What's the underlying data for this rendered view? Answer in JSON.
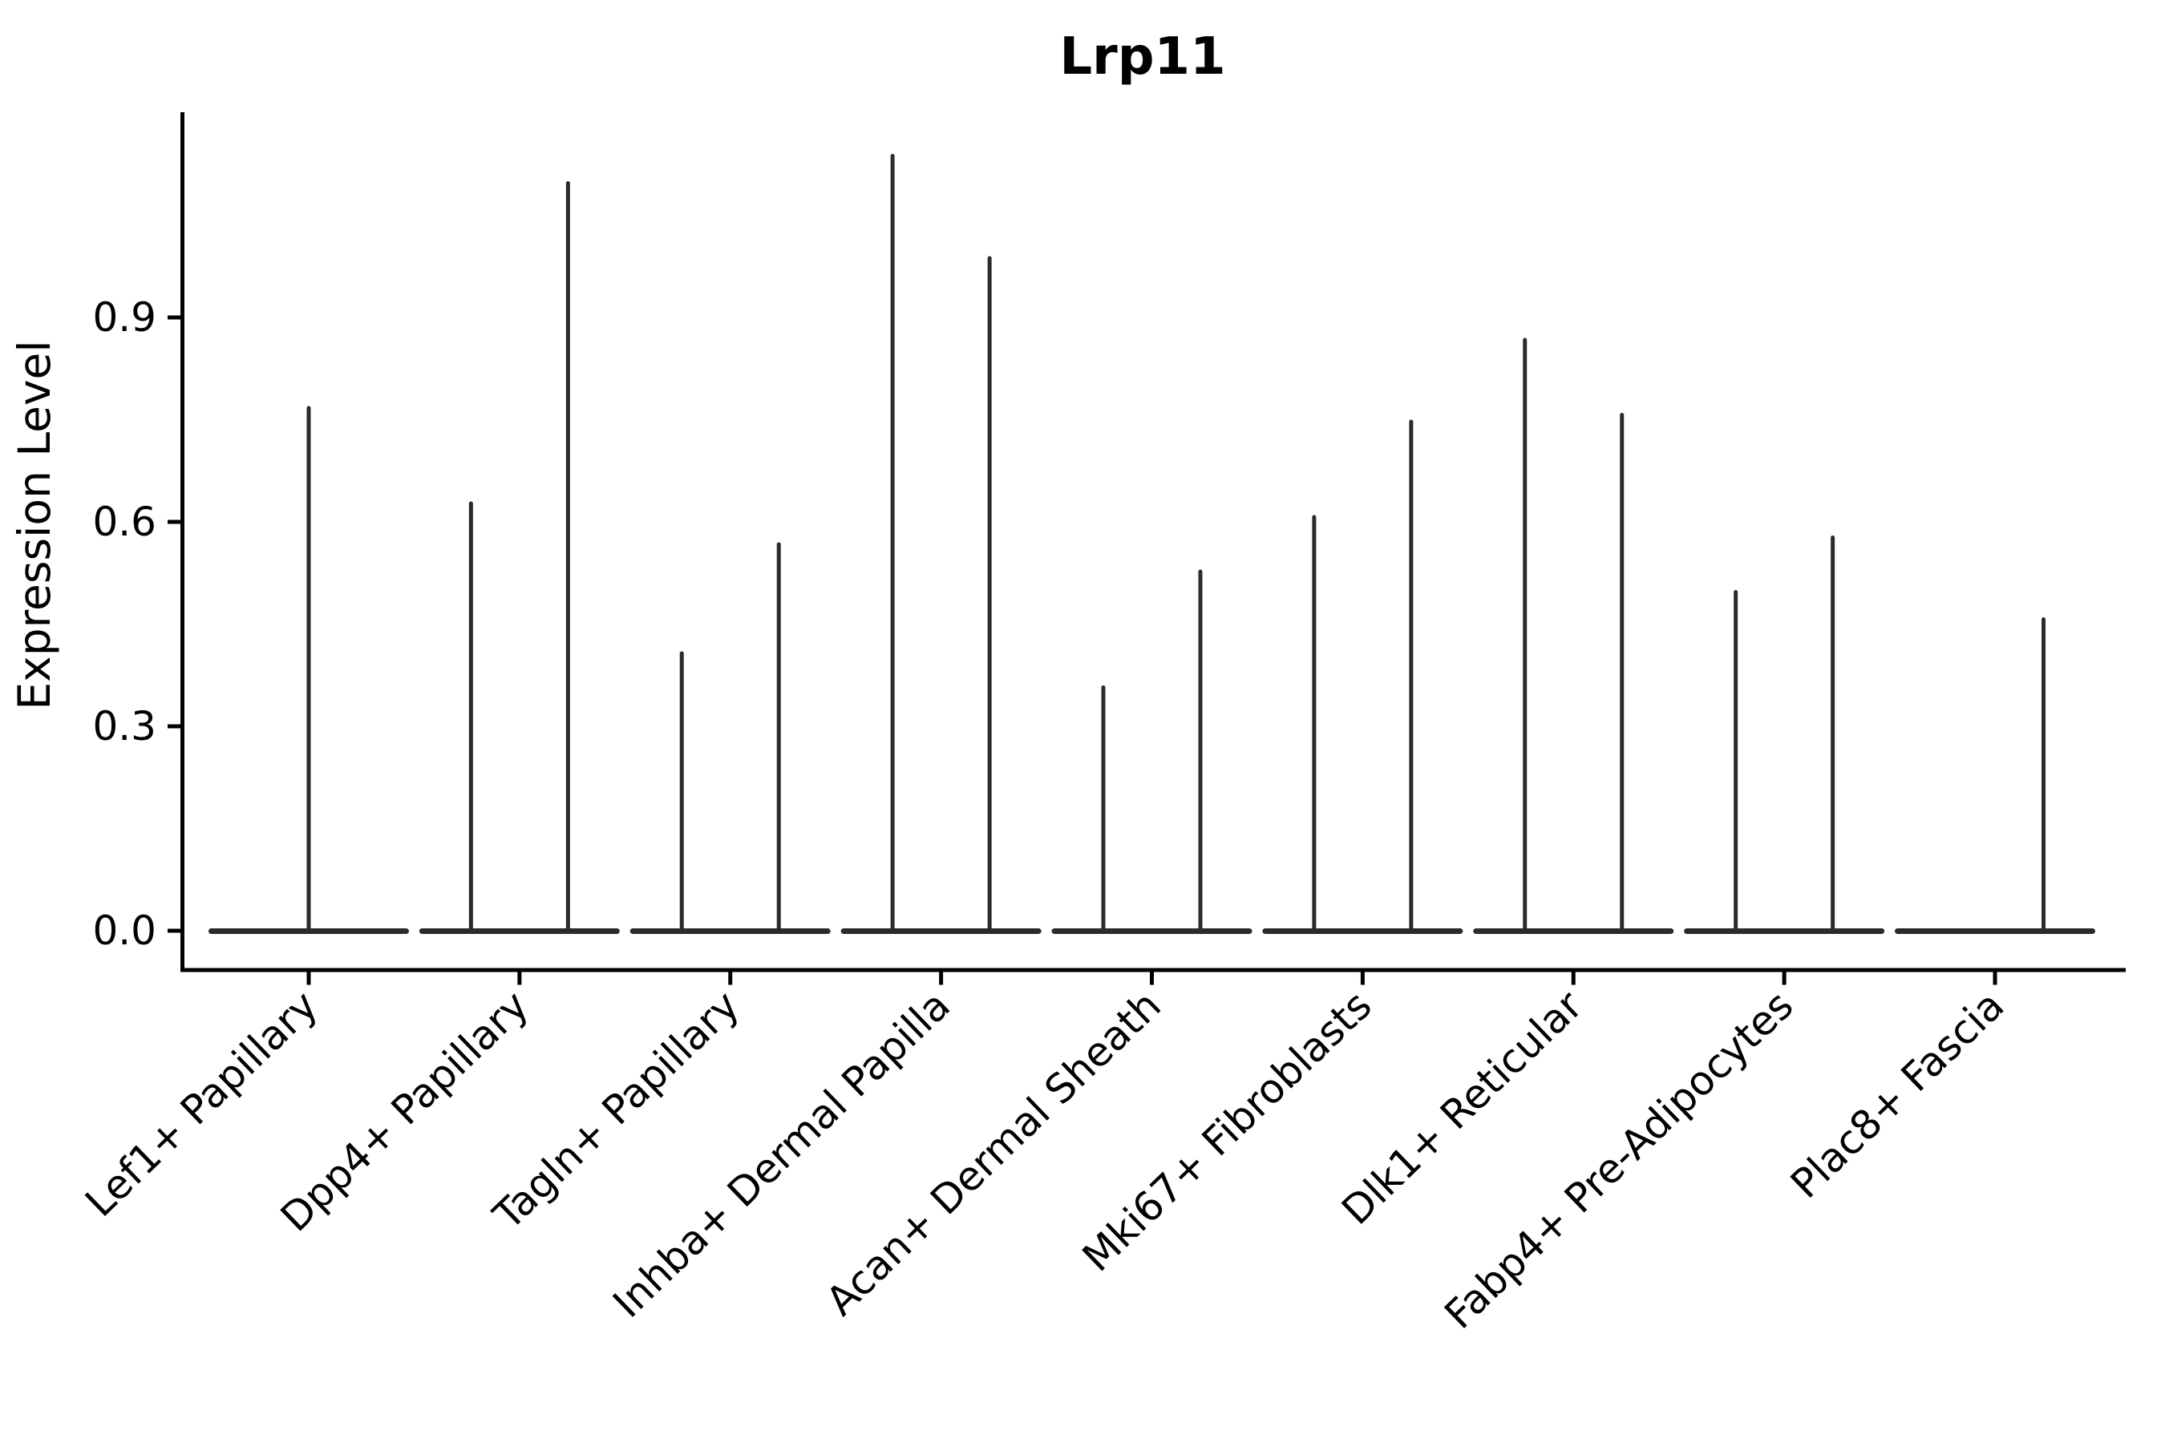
{
  "figure": {
    "title": "Lrp11",
    "background": "#ffffff"
  },
  "chart_data": {
    "type": "violin",
    "title": "Lrp11",
    "ylabel": "Expression Level",
    "xlabel": "",
    "ytick_labels": [
      "0.0",
      "0.3",
      "0.6",
      "0.9"
    ],
    "yticks": [
      0.0,
      0.3,
      0.6,
      0.9
    ],
    "ylim": [
      -0.06,
      1.2
    ],
    "grid": false,
    "legend": null,
    "x_tick_rotation": -44,
    "colors": {
      "violin": "#2b2b2b",
      "axis": "#000000",
      "text": "#000000",
      "background": "#ffffff"
    },
    "categories": [
      "Lef1+ Papillary",
      "Dpp4+ Papillary",
      "Tagln+ Papillary",
      "Inhba+ Dermal Papilla",
      "Acan+ Dermal Sheath",
      "Mki67+ Fibroblasts",
      "Dlk1+ Reticular",
      "Fabp4+ Pre-Adipocytes",
      "Plac8+ Fascia"
    ],
    "violins": [
      {
        "category": "Lef1+ Papillary",
        "groups": [
          {
            "position": "center",
            "max": 0.77
          }
        ]
      },
      {
        "category": "Dpp4+ Papillary",
        "groups": [
          {
            "position": "left",
            "max": 0.63
          },
          {
            "position": "right",
            "max": 1.1
          }
        ]
      },
      {
        "category": "Tagln+ Papillary",
        "groups": [
          {
            "position": "left",
            "max": 0.41
          },
          {
            "position": "right",
            "max": 0.57
          }
        ]
      },
      {
        "category": "Inhba+ Dermal Papilla",
        "groups": [
          {
            "position": "left",
            "max": 1.14
          },
          {
            "position": "right",
            "max": 0.99
          }
        ]
      },
      {
        "category": "Acan+ Dermal Sheath",
        "groups": [
          {
            "position": "left",
            "max": 0.36
          },
          {
            "position": "right",
            "max": 0.53
          }
        ]
      },
      {
        "category": "Mki67+ Fibroblasts",
        "groups": [
          {
            "position": "left",
            "max": 0.61
          },
          {
            "position": "right",
            "max": 0.75
          }
        ]
      },
      {
        "category": "Dlk1+ Reticular",
        "groups": [
          {
            "position": "left",
            "max": 0.87
          },
          {
            "position": "right",
            "max": 0.76
          }
        ]
      },
      {
        "category": "Fabp4+ Pre-Adipocytes",
        "groups": [
          {
            "position": "left",
            "max": 0.5
          },
          {
            "position": "right",
            "max": 0.58
          }
        ]
      },
      {
        "category": "Plac8+ Fascia",
        "groups": [
          {
            "position": "left",
            "max": 0.0
          },
          {
            "position": "right",
            "max": 0.46
          }
        ]
      }
    ]
  }
}
